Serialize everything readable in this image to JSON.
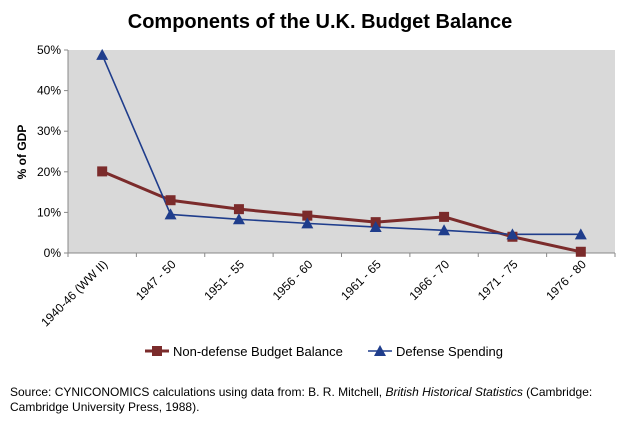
{
  "chart_data": {
    "type": "line",
    "title": "Components of the U.K. Budget Balance",
    "xlabel": "",
    "ylabel": "% of GDP",
    "categories": [
      "1940-46 (WW II)",
      "1947 - 50",
      "1951 - 55",
      "1956 - 60",
      "1961 - 65",
      "1966 - 70",
      "1971 - 75",
      "1976 - 80"
    ],
    "ylim": [
      0,
      50
    ],
    "yticks": [
      "0%",
      "10%",
      "20%",
      "30%",
      "40%",
      "50%"
    ],
    "grid": false,
    "legend_position": "bottom",
    "series": [
      {
        "name": "Non-defense Budget Balance",
        "color": "#7b2b2b",
        "marker": "square",
        "values": [
          20.1,
          13.0,
          10.8,
          9.2,
          7.6,
          8.9,
          4.0,
          0.3
        ]
      },
      {
        "name": "Defense Spending",
        "color": "#1f3d8c",
        "marker": "triangle",
        "values": [
          48.8,
          9.5,
          8.3,
          7.3,
          6.4,
          5.6,
          4.6,
          4.6
        ]
      }
    ]
  },
  "source": {
    "prefix": "Source: CYNICONOMICS calculations using data from:  B. R. Mitchell, ",
    "book": "British Historical Statistics",
    "suffix": " (Cambridge: Cambridge University Press, 1988)."
  }
}
